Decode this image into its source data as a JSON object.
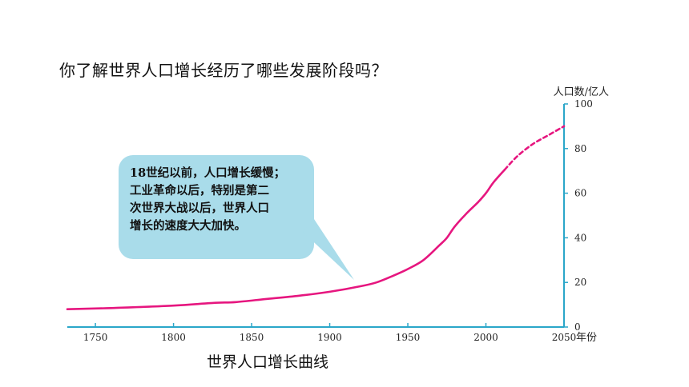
{
  "question": "你了解世界人口增长经历了哪些发展阶段吗？",
  "caption": "世界人口增长曲线",
  "bubble": {
    "lines": [
      "18世纪以前，人口增长缓慢；",
      "工业革命以后，特别是第二",
      "次世界大战以后，世界人口",
      "增长的速度大大加快。"
    ]
  },
  "colors": {
    "curve": "#e6167f",
    "axis": "#2aa6c9",
    "bubble_fill": "#a9dcea"
  },
  "chart_data": {
    "type": "line",
    "title": "",
    "xlabel": "年份",
    "ylabel": "人口数/亿人",
    "xlim": [
      1732,
      2050
    ],
    "ylim": [
      0,
      100
    ],
    "x_ticks": [
      "1750",
      "1800",
      "1850",
      "1900",
      "1950",
      "2000",
      "2050"
    ],
    "y_ticks": [
      "0",
      "20",
      "40",
      "60",
      "80",
      "100"
    ],
    "series": [
      {
        "style": "solid",
        "points": [
          [
            1732,
            8.0
          ],
          [
            1760,
            8.5
          ],
          [
            1800,
            9.6
          ],
          [
            1825,
            10.8
          ],
          [
            1840,
            11.2
          ],
          [
            1860,
            12.6
          ],
          [
            1880,
            14.0
          ],
          [
            1900,
            15.8
          ],
          [
            1920,
            18.3
          ],
          [
            1930,
            20.0
          ],
          [
            1940,
            22.8
          ],
          [
            1950,
            26.0
          ],
          [
            1960,
            30.0
          ],
          [
            1970,
            36.5
          ],
          [
            1975,
            40.0
          ],
          [
            1980,
            45.0
          ],
          [
            1987,
            50.5
          ],
          [
            1995,
            56.0
          ],
          [
            2000,
            60.0
          ],
          [
            2005,
            65.0
          ],
          [
            2012,
            70.5
          ]
        ]
      },
      {
        "style": "dashed",
        "points": [
          [
            2012,
            70.5
          ],
          [
            2020,
            76.5
          ],
          [
            2030,
            82.0
          ],
          [
            2040,
            86.0
          ],
          [
            2050,
            90.0
          ]
        ]
      }
    ]
  }
}
